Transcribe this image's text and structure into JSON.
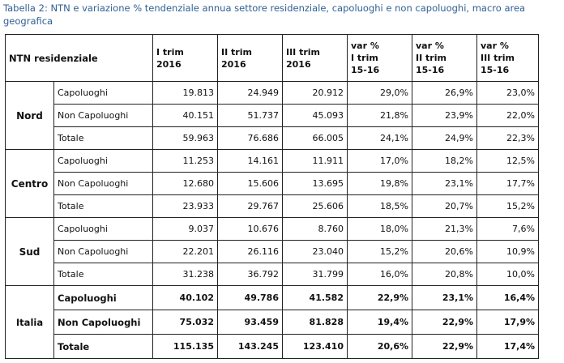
{
  "caption": "Tabella 2: NTN e variazione % tendenziale annua settore residenziale, capoluoghi e non capoluoghi, macro area geografica",
  "table": {
    "corner_label": "NTN residenziale",
    "columns": [
      [
        "I trim",
        "2016"
      ],
      [
        "II trim",
        "2016"
      ],
      [
        "III trim",
        "2016"
      ],
      [
        "var %",
        "I trim",
        "15-16"
      ],
      [
        "var %",
        "II trim",
        "15-16"
      ],
      [
        "var %",
        "III trim",
        "15-16"
      ]
    ],
    "groups": [
      {
        "area": "Nord",
        "rows": [
          {
            "label": "Capoluoghi",
            "values": [
              "19.813",
              "24.949",
              "20.912",
              "29,0%",
              "26,9%",
              "23,0%"
            ]
          },
          {
            "label": "Non Capoluoghi",
            "values": [
              "40.151",
              "51.737",
              "45.093",
              "21,8%",
              "23,9%",
              "22,0%"
            ]
          },
          {
            "label": "Totale",
            "values": [
              "59.963",
              "76.686",
              "66.005",
              "24,1%",
              "24,9%",
              "22,3%"
            ]
          }
        ]
      },
      {
        "area": "Centro",
        "rows": [
          {
            "label": "Capoluoghi",
            "values": [
              "11.253",
              "14.161",
              "11.911",
              "17,0%",
              "18,2%",
              "12,5%"
            ]
          },
          {
            "label": "Non Capoluoghi",
            "values": [
              "12.680",
              "15.606",
              "13.695",
              "19,8%",
              "23,1%",
              "17,7%"
            ]
          },
          {
            "label": "Totale",
            "values": [
              "23.933",
              "29.767",
              "25.606",
              "18,5%",
              "20,7%",
              "15,2%"
            ]
          }
        ]
      },
      {
        "area": "Sud",
        "rows": [
          {
            "label": "Capoluoghi",
            "values": [
              "9.037",
              "10.676",
              "8.760",
              "18,0%",
              "21,3%",
              "7,6%"
            ]
          },
          {
            "label": "Non Capoluoghi",
            "values": [
              "22.201",
              "26.116",
              "23.040",
              "15,2%",
              "20,6%",
              "10,9%"
            ]
          },
          {
            "label": "Totale",
            "values": [
              "31.238",
              "36.792",
              "31.799",
              "16,0%",
              "20,8%",
              "10,0%"
            ]
          }
        ]
      },
      {
        "area": "Italia",
        "rows": [
          {
            "label": "Capoluoghi",
            "values": [
              "40.102",
              "49.786",
              "41.582",
              "22,9%",
              "23,1%",
              "16,4%"
            ]
          },
          {
            "label": "Non Capoluoghi",
            "values": [
              "75.032",
              "93.459",
              "81.828",
              "19,4%",
              "22,9%",
              "17,9%"
            ]
          },
          {
            "label": "Totale",
            "values": [
              "115.135",
              "143.245",
              "123.410",
              "20,6%",
              "22,9%",
              "17,4%"
            ]
          }
        ]
      }
    ]
  }
}
